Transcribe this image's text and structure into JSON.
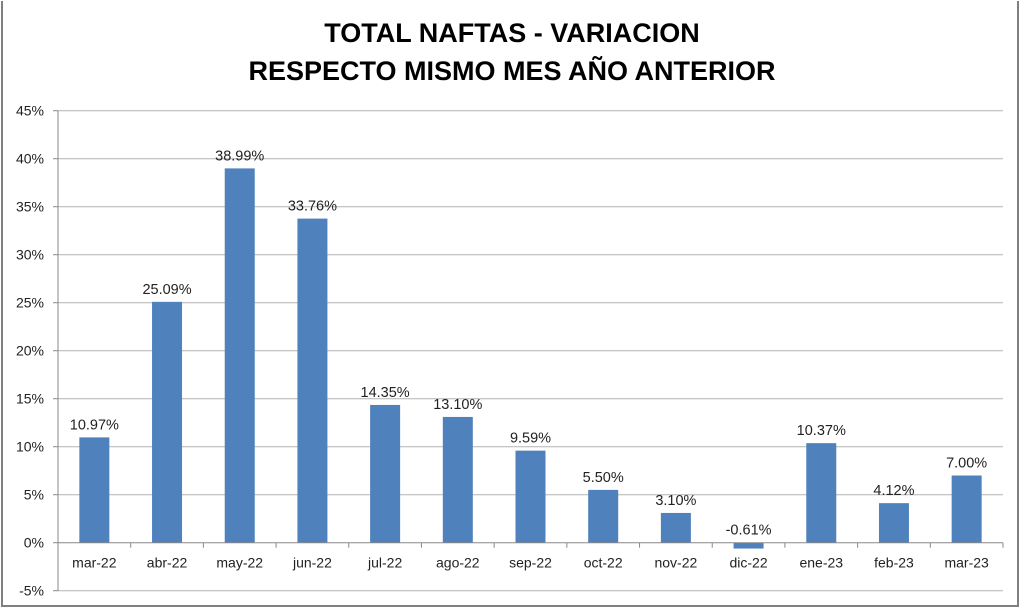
{
  "chart_data": {
    "type": "bar",
    "title": [
      "TOTAL NAFTAS - VARIACION",
      "RESPECTO MISMO MES AÑO ANTERIOR"
    ],
    "xlabel": "",
    "ylabel": "",
    "categories": [
      "mar-22",
      "abr-22",
      "may-22",
      "jun-22",
      "jul-22",
      "ago-22",
      "sep-22",
      "oct-22",
      "nov-22",
      "dic-22",
      "ene-23",
      "feb-23",
      "mar-23"
    ],
    "values": [
      10.97,
      25.09,
      38.99,
      33.76,
      14.35,
      13.1,
      9.59,
      5.5,
      3.1,
      -0.61,
      10.37,
      4.12,
      7.0
    ],
    "data_labels": [
      "10.97%",
      "25.09%",
      "38.99%",
      "33.76%",
      "14.35%",
      "13.10%",
      "9.59%",
      "5.50%",
      "3.10%",
      "-0.61%",
      "10.37%",
      "4.12%",
      "7.00%"
    ],
    "ylim": [
      -5,
      45
    ],
    "yticks": [
      -5,
      0,
      5,
      10,
      15,
      20,
      25,
      30,
      35,
      40,
      45
    ],
    "ytick_labels": [
      "-5%",
      "0%",
      "5%",
      "10%",
      "15%",
      "20%",
      "25%",
      "30%",
      "35%",
      "40%",
      "45%"
    ],
    "grid": true,
    "legend": "none",
    "bar_color": "#4f81bd"
  }
}
